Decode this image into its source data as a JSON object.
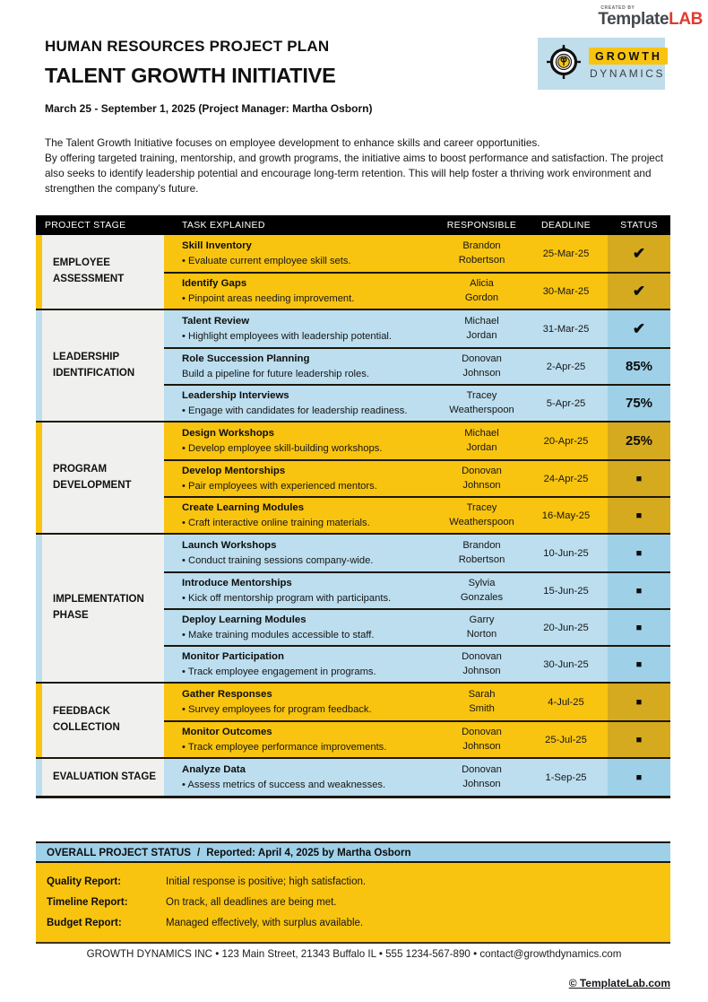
{
  "brand": {
    "created_by": "CREATED BY",
    "template": "Template",
    "lab": "LAB"
  },
  "logo": {
    "line1": "GROWTH",
    "line2": "DYNAMICS"
  },
  "header": {
    "subtitle": "HUMAN RESOURCES PROJECT PLAN",
    "title": "TALENT GROWTH INITIATIVE",
    "date_line": "March 25 - September 1, 2025 (Project Manager: Martha Osborn)"
  },
  "intro": {
    "line1": "The Talent Growth Initiative focuses on employee development to enhance skills and career opportunities.",
    "rest": "By offering targeted training, mentorship, and growth programs, the initiative aims to boost performance and satisfaction. The project also seeks to identify leadership potential and encourage long-term retention. This will help foster a thriving work environment and strengthen the company's future."
  },
  "table": {
    "columns": [
      "PROJECT STAGE",
      "TASK EXPLAINED",
      "RESPONSIBLE",
      "DEADLINE",
      "STATUS"
    ],
    "sections": [
      {
        "stage": "EMPLOYEE ASSESSMENT",
        "theme": "yellow",
        "rows": [
          {
            "task": "Skill Inventory",
            "detail": "• Evaluate current employee skill sets.",
            "responsible": [
              "Brandon",
              "Robertson"
            ],
            "deadline": "25-Mar-25",
            "status": "✔"
          },
          {
            "task": "Identify Gaps",
            "detail": "• Pinpoint areas needing improvement.",
            "responsible": [
              "Alicia",
              "Gordon"
            ],
            "deadline": "30-Mar-25",
            "status": "✔"
          }
        ]
      },
      {
        "stage": "LEADERSHIP IDENTIFICATION",
        "theme": "blue",
        "rows": [
          {
            "task": "Talent Review",
            "detail": "• Highlight employees with leadership potential.",
            "responsible": [
              "Michael",
              "Jordan"
            ],
            "deadline": "31-Mar-25",
            "status": "✔"
          },
          {
            "task": "Role Succession Planning",
            "detail": "Build a pipeline for future leadership roles.",
            "responsible": [
              "Donovan",
              "Johnson"
            ],
            "deadline": "2-Apr-25",
            "status": "85%"
          },
          {
            "task": "Leadership Interviews",
            "detail": "• Engage with candidates for leadership readiness.",
            "responsible": [
              "Tracey",
              "Weatherspoon"
            ],
            "deadline": "5-Apr-25",
            "status": "75%"
          }
        ]
      },
      {
        "stage": "PROGRAM DEVELOPMENT",
        "theme": "yellow",
        "rows": [
          {
            "task": "Design Workshops",
            "detail": "• Develop employee skill-building workshops.",
            "responsible": [
              "Michael",
              "Jordan"
            ],
            "deadline": "20-Apr-25",
            "status": "25%"
          },
          {
            "task": "Develop Mentorships",
            "detail": "• Pair employees with experienced mentors.",
            "responsible": [
              "Donovan",
              "Johnson"
            ],
            "deadline": "24-Apr-25",
            "status": "■"
          },
          {
            "task": "Create Learning Modules",
            "detail": "• Craft interactive online training materials.",
            "responsible": [
              "Tracey",
              "Weatherspoon"
            ],
            "deadline": "16-May-25",
            "status": "■"
          }
        ]
      },
      {
        "stage": "IMPLEMENTATION PHASE",
        "theme": "blue",
        "rows": [
          {
            "task": "Launch Workshops",
            "detail": "• Conduct training sessions company-wide.",
            "responsible": [
              "Brandon",
              "Robertson"
            ],
            "deadline": "10-Jun-25",
            "status": "■"
          },
          {
            "task": "Introduce Mentorships",
            "detail": "• Kick off mentorship program with participants.",
            "responsible": [
              "Sylvia",
              "Gonzales"
            ],
            "deadline": "15-Jun-25",
            "status": "■"
          },
          {
            "task": "Deploy Learning Modules",
            "detail": "• Make training modules accessible to staff.",
            "responsible": [
              "Garry",
              "Norton"
            ],
            "deadline": "20-Jun-25",
            "status": "■"
          },
          {
            "task": "Monitor Participation",
            "detail": "• Track employee engagement in programs.",
            "responsible": [
              "Donovan",
              "Johnson"
            ],
            "deadline": "30-Jun-25",
            "status": "■"
          }
        ]
      },
      {
        "stage": "FEEDBACK COLLECTION",
        "theme": "yellow",
        "rows": [
          {
            "task": "Gather Responses",
            "detail": "• Survey employees for program feedback.",
            "responsible": [
              "Sarah",
              "Smith"
            ],
            "deadline": "4-Jul-25",
            "status": "■"
          },
          {
            "task": "Monitor Outcomes",
            "detail": "• Track employee performance improvements.",
            "responsible": [
              "Donovan",
              "Johnson"
            ],
            "deadline": "25-Jul-25",
            "status": "■"
          }
        ]
      },
      {
        "stage": "EVALUATION STAGE",
        "theme": "blue",
        "rows": [
          {
            "task": "Analyze Data",
            "detail": "• Assess metrics of success and weaknesses.",
            "responsible": [
              "Donovan",
              "Johnson"
            ],
            "deadline": "1-Sep-25",
            "status": "■"
          }
        ]
      }
    ]
  },
  "overall": {
    "title": "OVERALL PROJECT STATUS",
    "separator": "/",
    "reported": "Reported: April 4, 2025 by Martha Osborn",
    "rows": [
      {
        "label": "Quality Report:",
        "value": "Initial response is positive; high satisfaction."
      },
      {
        "label": "Timeline Report:",
        "value": "On track, all deadlines are being met."
      },
      {
        "label": "Budget Report:",
        "value": "Managed effectively, with surplus available."
      }
    ]
  },
  "footer": {
    "text": "GROWTH DYNAMICS INC  •  123 Main Street, 21343 Buffalo IL  •  555 1234-567-890  •  contact@growthdynamics.com",
    "copyright": "© TemplateLab.com"
  },
  "colors": {
    "yellow": "#F9C40F",
    "yellow_dark": "#D5AA1F",
    "blue": "#BCDEEF",
    "blue_dark": "#9ED0E8",
    "stage_bg": "#F0F0EF",
    "logo_bg": "#BFDDEB",
    "lab_red": "#E23A2E",
    "line": "#1C1708"
  }
}
